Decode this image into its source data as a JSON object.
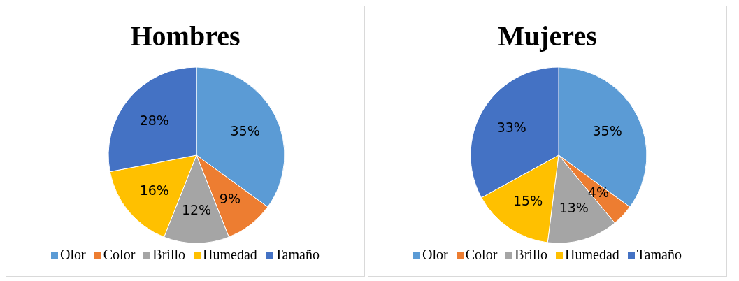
{
  "chart_data": [
    {
      "type": "pie",
      "title": "Hombres",
      "categories": [
        "Olor",
        "Color",
        "Brillo",
        "Humedad",
        "Tamaño"
      ],
      "values": [
        35,
        9,
        12,
        16,
        28
      ],
      "value_labels": [
        "35%",
        "9%",
        "12%",
        "16%",
        "28%"
      ],
      "colors": [
        "#5b9bd5",
        "#ed7d31",
        "#a5a5a5",
        "#ffc000",
        "#4472c4"
      ],
      "legend": "bottom"
    },
    {
      "type": "pie",
      "title": "Mujeres",
      "categories": [
        "Olor",
        "Color",
        "Brillo",
        "Humedad",
        "Tamaño"
      ],
      "values": [
        35,
        4,
        13,
        15,
        33
      ],
      "value_labels": [
        "35%",
        "4%",
        "13%",
        "15%",
        "33%"
      ],
      "colors": [
        "#5b9bd5",
        "#ed7d31",
        "#a5a5a5",
        "#ffc000",
        "#4472c4"
      ],
      "legend": "bottom"
    }
  ]
}
